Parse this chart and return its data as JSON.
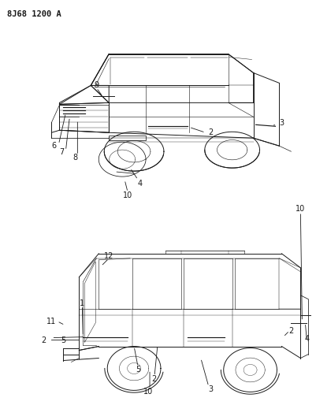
{
  "title": "8J68 1200 A",
  "bg_color": "#ffffff",
  "line_color": "#1a1a1a",
  "title_fontsize": 7.5,
  "label_fontsize": 7.0,
  "fig_width": 4.01,
  "fig_height": 5.33,
  "dpi": 100
}
